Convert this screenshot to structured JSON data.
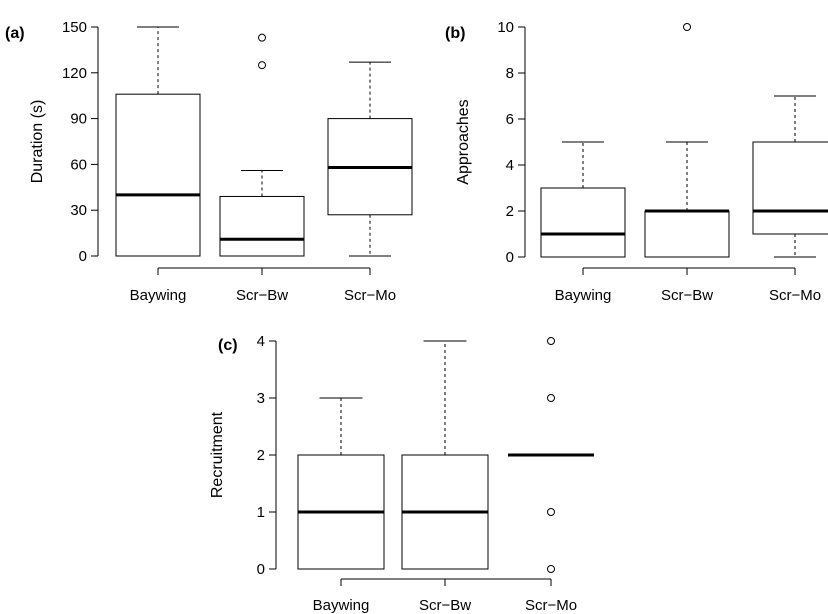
{
  "chart_data": [
    {
      "panel_label": "(a)",
      "type": "box",
      "ylabel": "Duration (s)",
      "categories": [
        "Baywing",
        "Scr−Bw",
        "Scr−Mo"
      ],
      "yticks": [
        "0",
        "30",
        "60",
        "90",
        "120",
        "150"
      ],
      "ylim": [
        0,
        150
      ],
      "boxes": [
        {
          "low": 0,
          "q1": 0,
          "median": 40,
          "q3": 106,
          "high": 150,
          "outliers": []
        },
        {
          "low": 0,
          "q1": 0,
          "median": 11,
          "q3": 39,
          "high": 56,
          "outliers": [
            125,
            143
          ]
        },
        {
          "low": 0,
          "q1": 27,
          "median": 58,
          "q3": 90,
          "high": 127,
          "outliers": []
        }
      ]
    },
    {
      "panel_label": "(b)",
      "type": "box",
      "ylabel": "Approaches",
      "categories": [
        "Baywing",
        "Scr−Bw",
        "Scr−Mo"
      ],
      "yticks": [
        "0",
        "2",
        "4",
        "6",
        "8",
        "10"
      ],
      "ylim": [
        0,
        10
      ],
      "boxes": [
        {
          "low": 0,
          "q1": 0,
          "median": 1,
          "q3": 3,
          "high": 5,
          "outliers": []
        },
        {
          "low": 0,
          "q1": 0,
          "median": 2,
          "q3": 2,
          "high": 5,
          "outliers": [
            10
          ]
        },
        {
          "low": 0,
          "q1": 1,
          "median": 2,
          "q3": 5,
          "high": 7,
          "outliers": []
        }
      ]
    },
    {
      "panel_label": "(c)",
      "type": "box",
      "ylabel": "Recruitment",
      "categories": [
        "Baywing",
        "Scr−Bw",
        "Scr−Mo"
      ],
      "yticks": [
        "0",
        "1",
        "2",
        "3",
        "4"
      ],
      "ylim": [
        0,
        4
      ],
      "boxes": [
        {
          "low": 0,
          "q1": 0,
          "median": 1,
          "q3": 2,
          "high": 3,
          "outliers": []
        },
        {
          "low": 0,
          "q1": 0,
          "median": 1,
          "q3": 2,
          "high": 4,
          "outliers": []
        },
        {
          "low": 2,
          "q1": 2,
          "median": 2,
          "q3": 2,
          "high": 2,
          "outliers": [
            0,
            1,
            3,
            4
          ]
        }
      ]
    }
  ]
}
